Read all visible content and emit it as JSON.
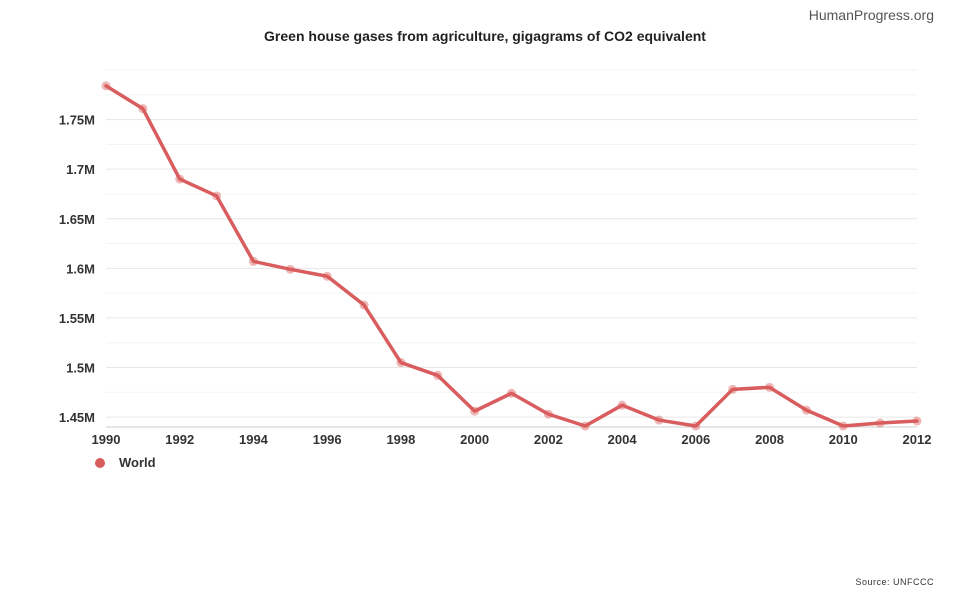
{
  "watermark": "HumanProgress.org",
  "source": "Source: UNFCCC",
  "colors": {
    "series": "#d95d5e",
    "grid": "#e6e6e6",
    "axis": "#cccccc"
  },
  "chart_data": {
    "type": "line",
    "title": "Green house gases from agriculture, gigagrams of CO2 equivalent",
    "xlabel": "",
    "ylabel": "",
    "xlim": [
      1990,
      2012
    ],
    "ylim": [
      1440000,
      1800000
    ],
    "x_ticks": [
      1990,
      1992,
      1994,
      1996,
      1998,
      2000,
      2002,
      2004,
      2006,
      2008,
      2010,
      2012
    ],
    "y_ticks": [
      1450000,
      1500000,
      1550000,
      1600000,
      1650000,
      1700000,
      1750000
    ],
    "y_tick_labels": [
      "1.45M",
      "1.5M",
      "1.55M",
      "1.6M",
      "1.65M",
      "1.7M",
      "1.75M"
    ],
    "grid": true,
    "legend_position": "bottom-left",
    "series": [
      {
        "name": "World",
        "x": [
          1990,
          1991,
          1992,
          1993,
          1994,
          1995,
          1996,
          1997,
          1998,
          1999,
          2000,
          2001,
          2002,
          2003,
          2004,
          2005,
          2006,
          2007,
          2008,
          2009,
          2010,
          2011,
          2012
        ],
        "values": [
          1784000,
          1761000,
          1690000,
          1673000,
          1607000,
          1599000,
          1592000,
          1563000,
          1505000,
          1492000,
          1456000,
          1474000,
          1453000,
          1441000,
          1462000,
          1447000,
          1441000,
          1478000,
          1480000,
          1457000,
          1441000,
          1444000,
          1446000
        ]
      }
    ]
  }
}
